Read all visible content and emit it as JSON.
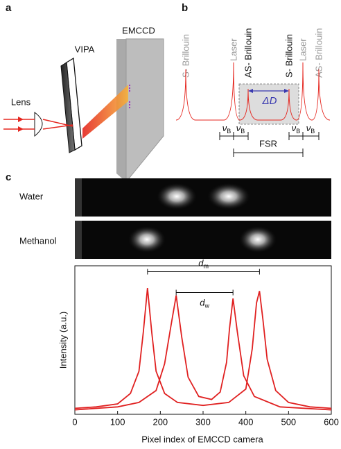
{
  "panel_a": {
    "label": "a",
    "vipa": "VIPA",
    "emccd": "EMCCD",
    "lens": "Lens"
  },
  "panel_b": {
    "label": "b",
    "peaks": [
      {
        "text": "S- Brillouin",
        "color": "#999999"
      },
      {
        "text": "Laser",
        "color": "#999999"
      },
      {
        "text": "AS- Brillouin",
        "color": "#111111"
      },
      {
        "text": "S- Brillouin",
        "color": "#111111"
      },
      {
        "text": "Laser",
        "color": "#999999"
      },
      {
        "text": "AS- Brillouin",
        "color": "#999999"
      }
    ],
    "delta": "ΔD",
    "nu": [
      {
        "symbol": "ν",
        "sub": "B"
      },
      {
        "symbol": "ν",
        "sub": "B"
      },
      {
        "symbol": "ν",
        "sub": "B"
      },
      {
        "symbol": "ν",
        "sub": "B"
      }
    ],
    "fsr": "FSR"
  },
  "panel_c": {
    "label": "c",
    "images": [
      "Water",
      "Methanol"
    ]
  },
  "chart_data": {
    "type": "line",
    "xlabel": "Pixel index of EMCCD camera",
    "ylabel": "Intensity (a.u.)",
    "xlim": [
      0,
      600
    ],
    "xticks": [
      0,
      100,
      200,
      300,
      400,
      500,
      600
    ],
    "ylim": [
      0,
      1
    ],
    "series": [
      {
        "color": "#e02020",
        "x": [
          0,
          50,
          100,
          130,
          150,
          160,
          170,
          180,
          190,
          210,
          240,
          300,
          360,
          400,
          415,
          425,
          432,
          440,
          450,
          470,
          500,
          550,
          600
        ],
        "values": [
          0.04,
          0.05,
          0.07,
          0.14,
          0.29,
          0.55,
          0.85,
          0.55,
          0.29,
          0.14,
          0.08,
          0.06,
          0.08,
          0.17,
          0.44,
          0.75,
          0.83,
          0.64,
          0.37,
          0.16,
          0.08,
          0.05,
          0.04
        ]
      },
      {
        "color": "#e02020",
        "x": [
          0,
          100,
          150,
          190,
          210,
          225,
          237,
          250,
          265,
          290,
          320,
          340,
          355,
          362,
          370,
          380,
          395,
          420,
          480,
          600
        ],
        "values": [
          0.03,
          0.05,
          0.08,
          0.16,
          0.34,
          0.6,
          0.8,
          0.52,
          0.25,
          0.12,
          0.1,
          0.15,
          0.35,
          0.58,
          0.78,
          0.56,
          0.26,
          0.12,
          0.05,
          0.03
        ]
      }
    ],
    "annotations": [
      {
        "text": {
          "symbol": "d",
          "sub": "m"
        },
        "x": [
          170,
          432
        ],
        "y": 0.96
      },
      {
        "text": {
          "symbol": "d",
          "sub": "w"
        },
        "x": [
          237,
          370
        ],
        "y": 0.82
      }
    ]
  }
}
